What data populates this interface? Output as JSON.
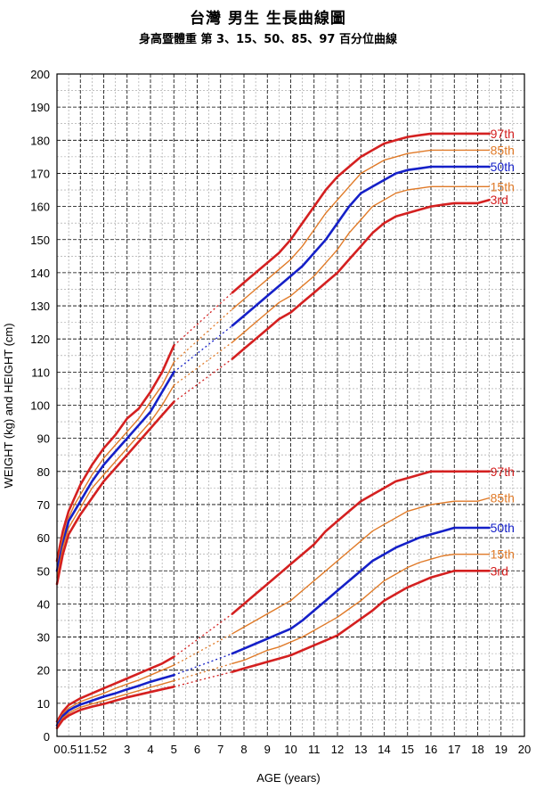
{
  "title": "台灣 男生 生長曲線圖",
  "subtitle": "身高暨體重 第 3、15、50、85、97 百分位曲線",
  "chart_data": {
    "type": "line",
    "xlabel": "AGE (years)",
    "ylabel": "WEIGHT (kg) and HEIGHT (cm)",
    "xlim": [
      0,
      20
    ],
    "ylim": [
      0,
      200
    ],
    "grid": true,
    "x_ticks": [
      "0",
      "0.5",
      "1",
      "1.5",
      "2",
      "3",
      "4",
      "5",
      "6",
      "7",
      "8",
      "9",
      "10",
      "11",
      "12",
      "13",
      "14",
      "15",
      "16",
      "17",
      "18",
      "19",
      "20"
    ],
    "y_ticks": [
      "0",
      "10",
      "20",
      "30",
      "40",
      "50",
      "60",
      "70",
      "80",
      "90",
      "100",
      "110",
      "120",
      "130",
      "140",
      "150",
      "160",
      "170",
      "180",
      "190",
      "200"
    ],
    "colors": {
      "97th": "#d42020",
      "85th": "#e07a28",
      "50th": "#1520c8",
      "15th": "#e07a28",
      "3rd": "#d42020"
    },
    "series": [
      {
        "name": "97th",
        "group": "height",
        "label_color": "#d42020",
        "early": {
          "x": [
            0,
            0.25,
            0.5,
            0.75,
            1,
            1.5,
            2,
            2.5,
            3,
            3.5,
            4,
            4.5,
            5
          ],
          "y": [
            53,
            62,
            68,
            72,
            76,
            82,
            87,
            91,
            96,
            99,
            104,
            110,
            118
          ]
        },
        "late": {
          "x": [
            7.5,
            8,
            8.5,
            9,
            9.5,
            10,
            10.5,
            11,
            11.5,
            12,
            12.5,
            13,
            13.5,
            14,
            14.5,
            15,
            15.5,
            16,
            16.5,
            17,
            17.5,
            18,
            18.5
          ],
          "y": [
            134,
            137,
            140,
            143,
            146,
            150,
            155,
            160,
            165,
            169,
            172,
            175,
            177,
            179,
            180,
            181,
            181.5,
            182,
            182,
            182,
            182,
            182,
            182
          ]
        }
      },
      {
        "name": "85th",
        "group": "height",
        "label_color": "#e07a28",
        "early": {
          "x": [
            0,
            0.25,
            0.5,
            0.75,
            1,
            1.5,
            2,
            2.5,
            3,
            3.5,
            4,
            4.5,
            5
          ],
          "y": [
            51,
            60,
            66,
            70,
            73,
            79,
            84,
            88,
            92,
            96,
            101,
            106,
            113
          ]
        },
        "late": {
          "x": [
            7.5,
            8,
            8.5,
            9,
            9.5,
            10,
            10.5,
            11,
            11.5,
            12,
            12.5,
            13,
            13.5,
            14,
            14.5,
            15,
            15.5,
            16,
            16.5,
            17,
            17.5,
            18,
            18.5
          ],
          "y": [
            129,
            132,
            135,
            138,
            141,
            144,
            148,
            153,
            158,
            162,
            166,
            170,
            172,
            174,
            175,
            176,
            176.5,
            177,
            177,
            177,
            177,
            177,
            177
          ]
        }
      },
      {
        "name": "50th",
        "group": "height",
        "label_color": "#1520c8",
        "early": {
          "x": [
            0,
            0.25,
            0.5,
            0.75,
            1,
            1.5,
            2,
            2.5,
            3,
            3.5,
            4,
            4.5,
            5
          ],
          "y": [
            50,
            58,
            65,
            68,
            71,
            77,
            82,
            86,
            90,
            94,
            98,
            104,
            110
          ]
        },
        "late": {
          "x": [
            7.5,
            8,
            8.5,
            9,
            9.5,
            10,
            10.5,
            11,
            11.5,
            12,
            12.5,
            13,
            13.5,
            14,
            14.5,
            15,
            15.5,
            16,
            16.5,
            17,
            17.5,
            18,
            18.5
          ],
          "y": [
            124,
            127,
            130,
            133,
            136,
            139,
            142,
            146,
            150,
            155,
            160,
            164,
            166,
            168,
            170,
            171,
            171.5,
            172,
            172,
            172,
            172,
            172,
            172
          ]
        }
      },
      {
        "name": "15th",
        "group": "height",
        "label_color": "#e07a28",
        "early": {
          "x": [
            0,
            0.25,
            0.5,
            0.75,
            1,
            1.5,
            2,
            2.5,
            3,
            3.5,
            4,
            4.5,
            5
          ],
          "y": [
            48,
            57,
            63,
            66,
            69,
            75,
            79,
            83,
            87,
            91,
            95,
            100,
            106
          ]
        },
        "late": {
          "x": [
            7.5,
            8,
            8.5,
            9,
            9.5,
            10,
            10.5,
            11,
            11.5,
            12,
            12.5,
            13,
            13.5,
            14,
            14.5,
            15,
            15.5,
            16,
            16.5,
            17,
            17.5,
            18,
            18.5
          ],
          "y": [
            119,
            122,
            125,
            128,
            131,
            133,
            136,
            139,
            143,
            147,
            152,
            156,
            160,
            162,
            164,
            165,
            165.5,
            166,
            166,
            166,
            166,
            166,
            166
          ]
        }
      },
      {
        "name": "3rd",
        "group": "height",
        "label_color": "#d42020",
        "early": {
          "x": [
            0,
            0.25,
            0.5,
            0.75,
            1,
            1.5,
            2,
            2.5,
            3,
            3.5,
            4,
            4.5,
            5
          ],
          "y": [
            46,
            55,
            61,
            64,
            67,
            72,
            77,
            81,
            85,
            89,
            93,
            97,
            101
          ]
        },
        "late": {
          "x": [
            7.5,
            8,
            8.5,
            9,
            9.5,
            10,
            10.5,
            11,
            11.5,
            12,
            12.5,
            13,
            13.5,
            14,
            14.5,
            15,
            15.5,
            16,
            16.5,
            17,
            17.5,
            18,
            18.5
          ],
          "y": [
            114,
            117,
            120,
            123,
            126,
            128,
            131,
            134,
            137,
            140,
            144,
            148,
            152,
            155,
            157,
            158,
            159,
            160,
            160.5,
            161,
            161,
            161,
            162
          ]
        }
      },
      {
        "name": "97th",
        "group": "weight",
        "label_color": "#d42020",
        "early": {
          "x": [
            0,
            0.25,
            0.5,
            0.75,
            1,
            1.5,
            2,
            2.5,
            3,
            3.5,
            4,
            4.5,
            5
          ],
          "y": [
            4.5,
            7.5,
            9.5,
            10.5,
            11.5,
            13,
            14.5,
            16,
            17.5,
            19,
            20.5,
            22,
            24
          ]
        },
        "late": {
          "x": [
            7.5,
            8,
            8.5,
            9,
            9.5,
            10,
            10.5,
            11,
            11.5,
            12,
            12.5,
            13,
            13.5,
            14,
            14.5,
            15,
            15.5,
            16,
            16.5,
            17,
            17.5,
            18,
            18.5
          ],
          "y": [
            37,
            40,
            43,
            46,
            49,
            52,
            55,
            58,
            62,
            65,
            68,
            71,
            73,
            75,
            77,
            78,
            79,
            80,
            80,
            80,
            80,
            80,
            80
          ]
        }
      },
      {
        "name": "85th",
        "group": "weight",
        "label_color": "#e07a28",
        "early": {
          "x": [
            0,
            0.25,
            0.5,
            0.75,
            1,
            1.5,
            2,
            2.5,
            3,
            3.5,
            4,
            4.5,
            5
          ],
          "y": [
            3.8,
            6.8,
            8.5,
            9.5,
            10.5,
            11.8,
            13,
            14.5,
            15.8,
            17,
            18.5,
            20,
            21.5
          ]
        },
        "late": {
          "x": [
            7.5,
            8,
            8.5,
            9,
            9.5,
            10,
            10.5,
            11,
            11.5,
            12,
            12.5,
            13,
            13.5,
            14,
            14.5,
            15,
            15.5,
            16,
            16.5,
            17,
            17.5,
            18,
            18.5
          ],
          "y": [
            31,
            33,
            35,
            37,
            39,
            41,
            44,
            47,
            50,
            53,
            56,
            59,
            62,
            64,
            66,
            68,
            69,
            70,
            70.5,
            71,
            71,
            71,
            72
          ]
        }
      },
      {
        "name": "50th",
        "group": "weight",
        "label_color": "#1520c8",
        "early": {
          "x": [
            0,
            0.25,
            0.5,
            0.75,
            1,
            1.5,
            2,
            2.5,
            3,
            3.5,
            4,
            4.5,
            5
          ],
          "y": [
            3.3,
            6.2,
            7.8,
            8.8,
            9.6,
            10.8,
            12,
            13,
            14.2,
            15.3,
            16.5,
            17.5,
            18.5
          ]
        },
        "late": {
          "x": [
            7.5,
            8,
            8.5,
            9,
            9.5,
            10,
            10.5,
            11,
            11.5,
            12,
            12.5,
            13,
            13.5,
            14,
            14.5,
            15,
            15.5,
            16,
            16.5,
            17,
            17.5,
            18,
            18.5
          ],
          "y": [
            25,
            26.5,
            28,
            29.5,
            31,
            32.5,
            35,
            38,
            41,
            44,
            47,
            50,
            53,
            55,
            57,
            58.5,
            60,
            61,
            62,
            63,
            63,
            63,
            63
          ]
        }
      },
      {
        "name": "15th",
        "group": "weight",
        "label_color": "#e07a28",
        "early": {
          "x": [
            0,
            0.25,
            0.5,
            0.75,
            1,
            1.5,
            2,
            2.5,
            3,
            3.5,
            4,
            4.5,
            5
          ],
          "y": [
            2.9,
            5.6,
            7,
            8,
            8.8,
            9.8,
            10.8,
            11.8,
            12.8,
            13.8,
            14.8,
            15.8,
            16.8
          ]
        },
        "late": {
          "x": [
            7.5,
            8,
            8.5,
            9,
            9.5,
            10,
            10.5,
            11,
            11.5,
            12,
            12.5,
            13,
            13.5,
            14,
            14.5,
            15,
            15.5,
            16,
            16.5,
            17,
            17.5,
            18,
            18.5
          ],
          "y": [
            22,
            23,
            24.5,
            26,
            27,
            28.5,
            30,
            32,
            34,
            36,
            38.5,
            41,
            44,
            47,
            49,
            51,
            52.5,
            53.5,
            54.5,
            55,
            55,
            55,
            55
          ]
        }
      },
      {
        "name": "3rd",
        "group": "weight",
        "label_color": "#d42020",
        "early": {
          "x": [
            0,
            0.25,
            0.5,
            0.75,
            1,
            1.5,
            2,
            2.5,
            3,
            3.5,
            4,
            4.5,
            5
          ],
          "y": [
            2.5,
            5,
            6.3,
            7.2,
            8,
            9,
            9.8,
            10.8,
            11.8,
            12.6,
            13.4,
            14.2,
            15
          ]
        },
        "late": {
          "x": [
            7.5,
            8,
            8.5,
            9,
            9.5,
            10,
            10.5,
            11,
            11.5,
            12,
            12.5,
            13,
            13.5,
            14,
            14.5,
            15,
            15.5,
            16,
            16.5,
            17,
            17.5,
            18,
            18.5
          ],
          "y": [
            19.5,
            20.5,
            21.5,
            22.5,
            23.5,
            24.5,
            26,
            27.5,
            29,
            30.5,
            33,
            35.5,
            38,
            41,
            43,
            45,
            46.5,
            48,
            49,
            50,
            50,
            50,
            50
          ]
        }
      }
    ]
  }
}
